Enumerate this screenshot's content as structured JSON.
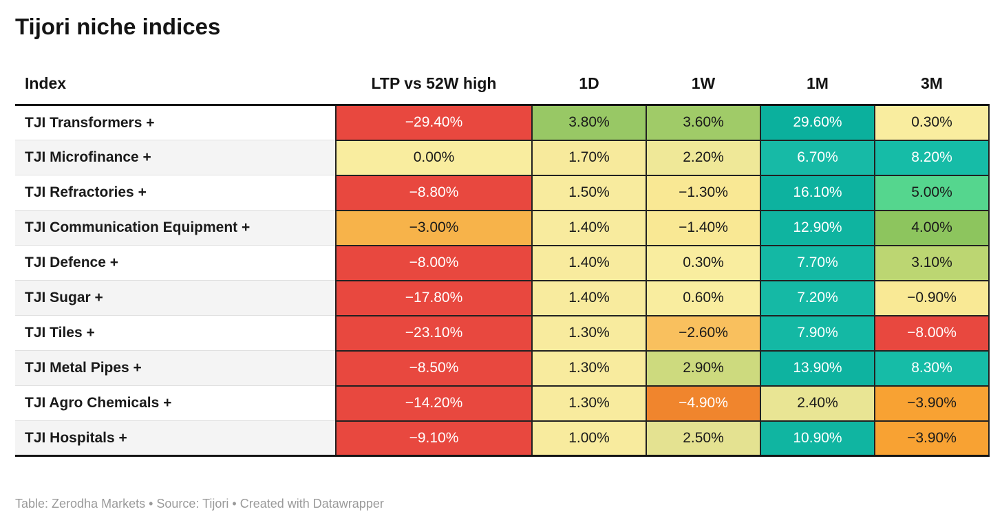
{
  "title": "Tijori niche indices",
  "columns": [
    "Index",
    "LTP vs 52W high",
    "1D",
    "1W",
    "1M",
    "3M"
  ],
  "footer": "Table: Zerodha Markets • Source: Tijori • Created with Datawrapper",
  "rows": [
    {
      "index": "TJI Transformers +",
      "cells": [
        {
          "v": "−29.40%",
          "bg": "#e8483f",
          "fg": "#ffffff"
        },
        {
          "v": "3.80%",
          "bg": "#98c865",
          "fg": "#1a1a1a"
        },
        {
          "v": "3.60%",
          "bg": "#a0cb68",
          "fg": "#1a1a1a"
        },
        {
          "v": "29.60%",
          "bg": "#0bb09d",
          "fg": "#ffffff"
        },
        {
          "v": "0.30%",
          "bg": "#f9ed9f",
          "fg": "#1a1a1a"
        }
      ]
    },
    {
      "index": "TJI Microfinance +",
      "cells": [
        {
          "v": "0.00%",
          "bg": "#f9ed9f",
          "fg": "#1a1a1a"
        },
        {
          "v": "1.70%",
          "bg": "#f7ea9c",
          "fg": "#1a1a1a"
        },
        {
          "v": "2.20%",
          "bg": "#efe898",
          "fg": "#1a1a1a"
        },
        {
          "v": "6.70%",
          "bg": "#17baa6",
          "fg": "#ffffff"
        },
        {
          "v": "8.20%",
          "bg": "#16bca7",
          "fg": "#ffffff"
        }
      ]
    },
    {
      "index": "TJI Refractories +",
      "cells": [
        {
          "v": "−8.80%",
          "bg": "#e8483f",
          "fg": "#ffffff"
        },
        {
          "v": "1.50%",
          "bg": "#f8eb9e",
          "fg": "#1a1a1a"
        },
        {
          "v": "−1.30%",
          "bg": "#f9e894",
          "fg": "#1a1a1a"
        },
        {
          "v": "16.10%",
          "bg": "#0db29f",
          "fg": "#ffffff"
        },
        {
          "v": "5.00%",
          "bg": "#55d68e",
          "fg": "#1a1a1a"
        }
      ]
    },
    {
      "index": "TJI Communication Equipment +",
      "cells": [
        {
          "v": "−3.00%",
          "bg": "#f7b34a",
          "fg": "#1a1a1a"
        },
        {
          "v": "1.40%",
          "bg": "#f8eb9e",
          "fg": "#1a1a1a"
        },
        {
          "v": "−1.40%",
          "bg": "#f9e894",
          "fg": "#1a1a1a"
        },
        {
          "v": "12.90%",
          "bg": "#0fb4a0",
          "fg": "#ffffff"
        },
        {
          "v": "4.00%",
          "bg": "#8dc55e",
          "fg": "#1a1a1a"
        }
      ]
    },
    {
      "index": "TJI Defence +",
      "cells": [
        {
          "v": "−8.00%",
          "bg": "#e8483f",
          "fg": "#ffffff"
        },
        {
          "v": "1.40%",
          "bg": "#f8eb9e",
          "fg": "#1a1a1a"
        },
        {
          "v": "0.30%",
          "bg": "#f9ed9f",
          "fg": "#1a1a1a"
        },
        {
          "v": "7.70%",
          "bg": "#14b8a4",
          "fg": "#ffffff"
        },
        {
          "v": "3.10%",
          "bg": "#bcd672",
          "fg": "#1a1a1a"
        }
      ]
    },
    {
      "index": "TJI Sugar +",
      "cells": [
        {
          "v": "−17.80%",
          "bg": "#e8483f",
          "fg": "#ffffff"
        },
        {
          "v": "1.40%",
          "bg": "#f8eb9e",
          "fg": "#1a1a1a"
        },
        {
          "v": "0.60%",
          "bg": "#f9ed9f",
          "fg": "#1a1a1a"
        },
        {
          "v": "7.20%",
          "bg": "#15b9a5",
          "fg": "#ffffff"
        },
        {
          "v": "−0.90%",
          "bg": "#f9e995",
          "fg": "#1a1a1a"
        }
      ]
    },
    {
      "index": "TJI Tiles +",
      "cells": [
        {
          "v": "−23.10%",
          "bg": "#e8483f",
          "fg": "#ffffff"
        },
        {
          "v": "1.30%",
          "bg": "#f8eb9e",
          "fg": "#1a1a1a"
        },
        {
          "v": "−2.60%",
          "bg": "#f9c05e",
          "fg": "#1a1a1a"
        },
        {
          "v": "7.90%",
          "bg": "#14b8a4",
          "fg": "#ffffff"
        },
        {
          "v": "−8.00%",
          "bg": "#e8483f",
          "fg": "#ffffff"
        }
      ]
    },
    {
      "index": "TJI Metal Pipes +",
      "cells": [
        {
          "v": "−8.50%",
          "bg": "#e8483f",
          "fg": "#ffffff"
        },
        {
          "v": "1.30%",
          "bg": "#f8eb9e",
          "fg": "#1a1a1a"
        },
        {
          "v": "2.90%",
          "bg": "#cdda7e",
          "fg": "#1a1a1a"
        },
        {
          "v": "13.90%",
          "bg": "#0eb3a0",
          "fg": "#ffffff"
        },
        {
          "v": "8.30%",
          "bg": "#16bca7",
          "fg": "#ffffff"
        }
      ]
    },
    {
      "index": "TJI Agro Chemicals +",
      "cells": [
        {
          "v": "−14.20%",
          "bg": "#e8483f",
          "fg": "#ffffff"
        },
        {
          "v": "1.30%",
          "bg": "#f8eb9e",
          "fg": "#1a1a1a"
        },
        {
          "v": "−4.90%",
          "bg": "#f0852d",
          "fg": "#ffffff"
        },
        {
          "v": "2.40%",
          "bg": "#e9e594",
          "fg": "#1a1a1a"
        },
        {
          "v": "−3.90%",
          "bg": "#f8a233",
          "fg": "#1a1a1a"
        }
      ]
    },
    {
      "index": "TJI Hospitals +",
      "cells": [
        {
          "v": "−9.10%",
          "bg": "#e8483f",
          "fg": "#ffffff"
        },
        {
          "v": "1.00%",
          "bg": "#f8eb9e",
          "fg": "#1a1a1a"
        },
        {
          "v": "2.50%",
          "bg": "#e4e291",
          "fg": "#1a1a1a"
        },
        {
          "v": "10.90%",
          "bg": "#10b5a1",
          "fg": "#ffffff"
        },
        {
          "v": "−3.90%",
          "bg": "#f8a233",
          "fg": "#1a1a1a"
        }
      ]
    }
  ],
  "chart_data": {
    "type": "table",
    "title": "Tijori niche indices",
    "columns": [
      "Index",
      "LTP vs 52W high",
      "1D",
      "1W",
      "1M",
      "3M"
    ],
    "rows": [
      [
        "TJI Transformers +",
        -29.4,
        3.8,
        3.6,
        29.6,
        0.3
      ],
      [
        "TJI Microfinance +",
        0.0,
        1.7,
        2.2,
        6.7,
        8.2
      ],
      [
        "TJI Refractories +",
        -8.8,
        1.5,
        -1.3,
        16.1,
        5.0
      ],
      [
        "TJI Communication Equipment +",
        -3.0,
        1.4,
        -1.4,
        12.9,
        4.0
      ],
      [
        "TJI Defence +",
        -8.0,
        1.4,
        0.3,
        7.7,
        3.1
      ],
      [
        "TJI Sugar +",
        -17.8,
        1.4,
        0.6,
        7.2,
        -0.9
      ],
      [
        "TJI Tiles +",
        -23.1,
        1.3,
        -2.6,
        7.9,
        -8.0
      ],
      [
        "TJI Metal Pipes +",
        -8.5,
        1.3,
        2.9,
        13.9,
        8.3
      ],
      [
        "TJI Agro Chemicals +",
        -14.2,
        1.3,
        -4.9,
        2.4,
        -3.9
      ],
      [
        "TJI Hospitals +",
        -9.1,
        1.0,
        2.5,
        10.9,
        -3.9
      ]
    ],
    "value_unit": "%",
    "color_encoding": "heatmap: red (negative) → pale yellow (near zero) → green → teal (strongly positive)",
    "attribution": "Table: Zerodha Markets • Source: Tijori • Created with Datawrapper"
  }
}
